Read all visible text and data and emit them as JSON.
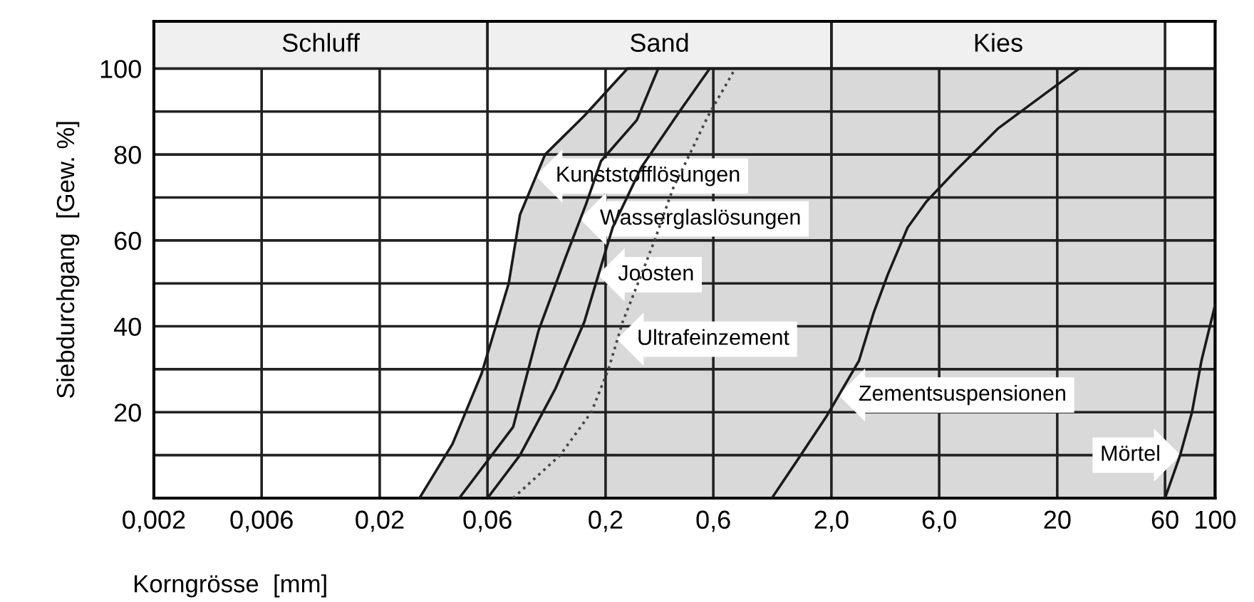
{
  "chart_data": {
    "type": "line",
    "xlabel": "Korngrösse  [mm]",
    "ylabel": "Siebdurchgang  [Gew. %]",
    "log": "x",
    "grid": true,
    "legend": false,
    "xlim": [
      0.002,
      100
    ],
    "ylim": [
      0,
      111
    ],
    "xticks": [
      {
        "value": 0.002,
        "label": "0,002"
      },
      {
        "value": 0.006,
        "label": "0,006"
      },
      {
        "value": 0.02,
        "label": "0,02"
      },
      {
        "value": 0.06,
        "label": "0,06"
      },
      {
        "value": 0.2,
        "label": "0,2"
      },
      {
        "value": 0.6,
        "label": "0,6"
      },
      {
        "value": 2,
        "label": "2,0"
      },
      {
        "value": 6,
        "label": "6,0"
      },
      20,
      60,
      100
    ],
    "yticks": [
      {
        "value": 10,
        "label": null
      },
      20,
      {
        "value": 30,
        "label": null
      },
      40,
      {
        "value": 50,
        "label": null
      },
      60,
      {
        "value": 70,
        "label": null
      },
      80,
      {
        "value": 90,
        "label": null
      },
      100
    ],
    "bands": [
      {
        "axis": "x",
        "from": 0.002,
        "to": 0.06,
        "label": "Schluff",
        "color": "#f0f0f0"
      },
      {
        "axis": "x",
        "from": 0.06,
        "to": 2,
        "label": "Sand",
        "color": "#f0f0f0"
      },
      {
        "axis": "x",
        "from": 2,
        "to": 60,
        "label": "Kies",
        "color": "#f0f0f0"
      }
    ],
    "series": [
      {
        "name": "Kunststofflösungen",
        "type": "area",
        "color": "#d9d9d9",
        "x": [
          0.03,
          0.042,
          0.0565,
          0.0745,
          0.0836,
          0.108,
          0.161,
          0.25,
          100
        ],
        "values": [
          0,
          12.6,
          29,
          50,
          66,
          80,
          89,
          100,
          100
        ]
      },
      {
        "name": "Wasserglaslösungen",
        "color": "#1a1a1a",
        "line_style": "solid",
        "x": [
          0.045,
          0.078,
          0.101,
          0.133,
          0.164,
          0.191,
          0.275,
          0.342
        ],
        "values": [
          0,
          16.6,
          39,
          56,
          68.5,
          78.5,
          88,
          100
        ]
      },
      {
        "name": "Joosten",
        "color": "#1a1a1a",
        "line_style": "solid",
        "x": [
          0.06,
          0.0836,
          0.12,
          0.161,
          0.186,
          0.215,
          0.288,
          0.425,
          0.578
        ],
        "values": [
          0,
          10,
          25.5,
          41,
          52,
          63,
          77,
          90,
          100
        ]
      },
      {
        "name": "Ultrafeinzement",
        "color": "#444444",
        "line_style": "dotted",
        "x": [
          0.078,
          0.126,
          0.173,
          0.206,
          0.238,
          0.288,
          0.333,
          0.397,
          0.466,
          0.569,
          0.75
        ],
        "values": [
          0,
          10,
          20,
          30,
          41,
          52,
          60.6,
          72,
          79.5,
          89,
          100
        ]
      },
      {
        "name": "Zementsuspensionen",
        "color": "#1a1a1a",
        "line_style": "solid",
        "x": [
          1.09,
          1.42,
          1.9,
          2.65,
          3.07,
          3.55,
          4.35,
          5.26,
          7.03,
          10.9,
          17.5,
          25
        ],
        "values": [
          0,
          9,
          19,
          32,
          43,
          52,
          63,
          69,
          76,
          86,
          94,
          100
        ]
      },
      {
        "name": "Mörtel",
        "color": "#1a1a1a",
        "line_style": "solid",
        "x": [
          60,
          70,
          79,
          87,
          100
        ],
        "values": [
          0,
          10,
          20,
          32,
          45
        ]
      }
    ]
  }
}
